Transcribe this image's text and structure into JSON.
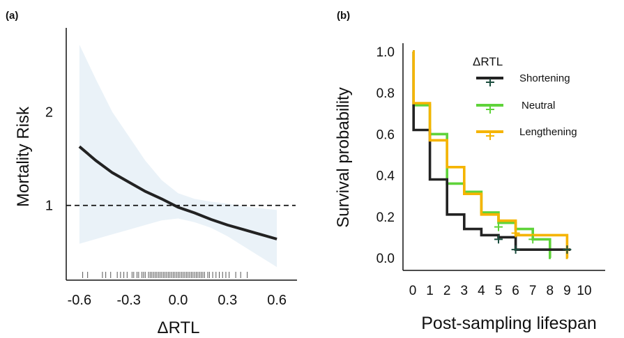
{
  "panel_a_label": "(a)",
  "panel_b_label": "(b)",
  "chart_data": [
    {
      "type": "line",
      "panel": "(a)",
      "xlabel": "ΔRTL",
      "ylabel": "Mortality Risk",
      "xlim": [
        -0.68,
        0.68
      ],
      "ylim": [
        0.2,
        2.9
      ],
      "x_ticks": [
        -0.6,
        -0.3,
        0.0,
        0.3,
        0.6
      ],
      "x_tick_labels": [
        "-0.6",
        "-0.3",
        "0.0",
        "0.3",
        "0.6"
      ],
      "y_ticks": [
        1,
        2
      ],
      "y_tick_labels": [
        "1",
        "2"
      ],
      "reference_line": 1,
      "line_color": "#222222",
      "ribbon_color": "#eaf2f8",
      "series": [
        {
          "x": [
            -0.6,
            -0.5,
            -0.4,
            -0.3,
            -0.2,
            -0.1,
            0.0,
            0.1,
            0.2,
            0.3,
            0.4,
            0.5,
            0.6
          ],
          "y": [
            1.63,
            1.48,
            1.35,
            1.25,
            1.15,
            1.07,
            0.98,
            0.92,
            0.85,
            0.79,
            0.74,
            0.69,
            0.64
          ],
          "lower": [
            0.59,
            0.64,
            0.69,
            0.74,
            0.79,
            0.84,
            0.86,
            0.82,
            0.76,
            0.67,
            0.56,
            0.45,
            0.34
          ],
          "upper": [
            2.72,
            2.35,
            2.0,
            1.74,
            1.48,
            1.27,
            1.13,
            1.07,
            1.04,
            1.02,
            0.99,
            0.97,
            0.95
          ]
        }
      ],
      "rug": [
        -0.58,
        -0.55,
        -0.46,
        -0.44,
        -0.41,
        -0.37,
        -0.35,
        -0.33,
        -0.31,
        -0.28,
        -0.27,
        -0.25,
        -0.24,
        -0.22,
        -0.21,
        -0.2,
        -0.18,
        -0.17,
        -0.16,
        -0.15,
        -0.14,
        -0.13,
        -0.12,
        -0.11,
        -0.1,
        -0.09,
        -0.08,
        -0.07,
        -0.06,
        -0.05,
        -0.04,
        -0.03,
        -0.02,
        -0.01,
        0.0,
        0.01,
        0.02,
        0.03,
        0.04,
        0.05,
        0.06,
        0.07,
        0.08,
        0.09,
        0.1,
        0.11,
        0.12,
        0.13,
        0.14,
        0.15,
        0.16,
        0.18,
        0.19,
        0.21,
        0.23,
        0.25,
        0.27,
        0.29,
        0.31,
        0.35,
        0.38,
        0.42
      ]
    },
    {
      "type": "line",
      "panel": "(b)",
      "xlabel": "Post-sampling lifespan",
      "ylabel": "Survival probability",
      "xlim": [
        -0.3,
        10.3
      ],
      "ylim": [
        -0.03,
        1.05
      ],
      "x_ticks": [
        0,
        1,
        2,
        3,
        4,
        5,
        6,
        7,
        8,
        9,
        10
      ],
      "x_tick_labels": [
        "0",
        "1",
        "2",
        "3",
        "4",
        "5",
        "6",
        "7",
        "8",
        "9",
        "10"
      ],
      "y_ticks": [
        0.0,
        0.2,
        0.4,
        0.6,
        0.8,
        1.0
      ],
      "y_tick_labels": [
        "0.0",
        "0.2",
        "0.4",
        "0.6",
        "0.8",
        "1.0"
      ],
      "legend_title": "ΔRTL",
      "legend_position": "top-right",
      "series": [
        {
          "name": "Shortening",
          "color": "#222222",
          "censor_color": "#1b4d3e",
          "steps": [
            [
              0,
              1.0
            ],
            [
              0.05,
              0.62
            ],
            [
              1,
              0.38
            ],
            [
              2,
              0.21
            ],
            [
              3,
              0.14
            ],
            [
              4,
              0.11
            ],
            [
              5,
              0.1
            ],
            [
              6,
              0.04
            ],
            [
              9,
              0.04
            ]
          ],
          "end": 9.2,
          "censors": [
            [
              5,
              0.09
            ],
            [
              6,
              0.04
            ],
            [
              9,
              0.04
            ]
          ]
        },
        {
          "name": "Neutral",
          "color": "#5fd33a",
          "censor_color": "#5fd33a",
          "steps": [
            [
              0,
              1.0
            ],
            [
              0.05,
              0.74
            ],
            [
              1,
              0.6
            ],
            [
              2,
              0.36
            ],
            [
              3,
              0.32
            ],
            [
              4,
              0.22
            ],
            [
              5,
              0.17
            ],
            [
              6,
              0.14
            ],
            [
              7,
              0.09
            ],
            [
              8,
              0.0
            ]
          ],
          "end": 8.05,
          "censors": [
            [
              5,
              0.15
            ],
            [
              7,
              0.09
            ]
          ]
        },
        {
          "name": "Lengthening",
          "color": "#f5b400",
          "censor_color": "#f5b400",
          "steps": [
            [
              0,
              1.0
            ],
            [
              0.05,
              0.75
            ],
            [
              1,
              0.57
            ],
            [
              2,
              0.44
            ],
            [
              3,
              0.31
            ],
            [
              4,
              0.21
            ],
            [
              5,
              0.18
            ],
            [
              6,
              0.11
            ],
            [
              8,
              0.11
            ],
            [
              9,
              0.0
            ]
          ],
          "end": 9.05,
          "censors": [
            [
              6,
              0.12
            ]
          ]
        }
      ]
    }
  ]
}
